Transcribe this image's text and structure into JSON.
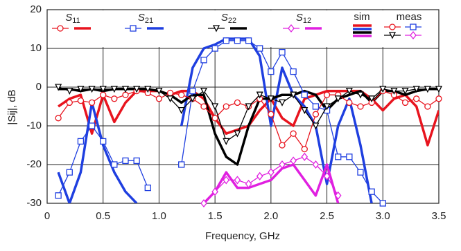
{
  "chart_data": {
    "type": "line",
    "x_label": "Frequency, GHz",
    "y_label": "|Sij|, dB",
    "xlim": [
      0,
      3.5
    ],
    "xticks": [
      0,
      0.5,
      {
        "value": 1,
        "label": "1.0"
      },
      1.5,
      {
        "value": 2,
        "label": "2.0"
      },
      2.5,
      {
        "value": 3,
        "label": "3.0"
      },
      3.5
    ],
    "ylim": [
      -30,
      20
    ],
    "yticks": [
      -30,
      -20,
      -10,
      0,
      10,
      20
    ],
    "grid": true,
    "legend_headers": [
      "sim",
      "meas"
    ],
    "x": [
      0,
      0.1,
      0.2,
      0.3,
      0.4,
      0.5,
      0.6,
      0.7,
      0.8,
      0.9,
      1.0,
      1.1,
      1.2,
      1.3,
      1.4,
      1.5,
      1.6,
      1.7,
      1.8,
      1.9,
      2.0,
      2.1,
      2.2,
      2.3,
      2.4,
      2.5,
      2.6,
      2.7,
      2.8,
      2.9,
      3.0,
      3.1,
      3.2,
      3.3,
      3.4,
      3.5
    ],
    "series": [
      {
        "name": "S11",
        "color": "#e8141e",
        "marker": "circle",
        "sim": [
          null,
          -5,
          -3,
          -2,
          -12,
          -2,
          -9,
          -4,
          -1,
          -1,
          -1,
          -2,
          -1,
          -1,
          -3,
          -8,
          -12,
          -11,
          -10,
          -6,
          -3,
          -8,
          -10,
          -3,
          -2,
          -1,
          -1,
          -1,
          -1,
          -3,
          -6,
          -3,
          -2,
          -5,
          -15,
          -6
        ],
        "meas": [
          null,
          -8,
          -4,
          -3.5,
          -4,
          -2,
          -3,
          -2,
          -1,
          -1.5,
          -3,
          -1.5,
          -2,
          -3,
          -5,
          -8,
          -5,
          -4,
          -5,
          -3,
          -7,
          -15,
          -12,
          -16,
          -7,
          -2,
          -2,
          -4,
          -5,
          -4,
          -1,
          -2,
          -4,
          -3,
          -5,
          -3
        ]
      },
      {
        "name": "S21",
        "color": "#1f3fe0",
        "marker": "square",
        "sim": [
          null,
          -22,
          -30,
          -22,
          -4,
          -15,
          -22,
          -27,
          -30,
          null,
          null,
          null,
          -10,
          5,
          10,
          11,
          12.5,
          12.5,
          12.5,
          8,
          -10,
          5,
          -2,
          -5,
          -10,
          -25,
          -10,
          -3,
          -15,
          -30,
          null,
          null,
          null,
          null,
          null,
          null
        ],
        "meas": [
          null,
          -28,
          -22,
          -14,
          -10,
          -14,
          -20,
          -19,
          -19,
          -26,
          null,
          null,
          -20,
          -1,
          7,
          10,
          12,
          12,
          12,
          10,
          4,
          9,
          4,
          -2,
          -5,
          -6,
          -18,
          -18,
          -22,
          -27,
          -30,
          null,
          null,
          null,
          null,
          null
        ]
      },
      {
        "name": "S22",
        "color": "#000000",
        "marker": "triangle",
        "sim": [
          null,
          -0.5,
          -0.5,
          -1,
          -0.5,
          -1,
          -0.5,
          -0.5,
          -0.5,
          -0.5,
          -1,
          -2,
          -4,
          -2,
          -2,
          -12,
          -18,
          -20,
          -10,
          -3,
          -3,
          -2,
          -2,
          -1,
          -2,
          -6,
          -3,
          -2,
          -1,
          -4,
          -1,
          -1,
          -2,
          -1,
          -0.5,
          -0.5
        ],
        "meas": [
          null,
          0,
          -1,
          -0.5,
          -0.5,
          -0.5,
          -0.5,
          -0.5,
          -0.5,
          -0.5,
          -1,
          -3,
          -6,
          -3,
          -1,
          -5,
          -14,
          -12,
          -5,
          -2,
          -3,
          -4,
          -2,
          -6,
          -10,
          -5,
          -3,
          -1,
          -2,
          -3,
          -0.5,
          -1,
          -1,
          -0.5,
          -0.5,
          -0.5
        ]
      },
      {
        "name": "S12",
        "color": "#e020e0",
        "marker": "diamond",
        "sim": [
          null,
          null,
          null,
          null,
          null,
          null,
          null,
          null,
          null,
          null,
          null,
          null,
          null,
          null,
          -30,
          -27,
          -22,
          -26,
          -26,
          -25,
          -24,
          -21,
          -20,
          -24,
          -28,
          -20,
          -30,
          null,
          null,
          null,
          null,
          null,
          null,
          null,
          null,
          null
        ],
        "meas": [
          null,
          null,
          null,
          null,
          null,
          null,
          null,
          null,
          null,
          null,
          null,
          null,
          null,
          null,
          -30,
          -27,
          -24,
          -24,
          -25,
          -23,
          -22,
          -20,
          -19,
          -18,
          -20,
          -23,
          -28,
          null,
          null,
          null,
          null,
          null,
          null,
          null,
          null,
          null
        ]
      }
    ]
  }
}
